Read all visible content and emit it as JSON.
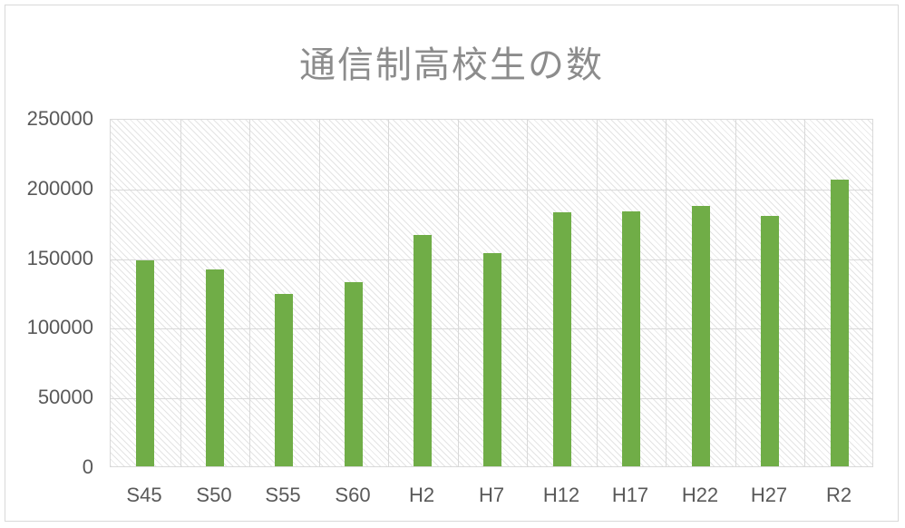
{
  "window": {
    "background": "#FFFFFF",
    "border_color": "#D9D9D9"
  },
  "chart_data": {
    "type": "bar",
    "title": "通信制高校生の数",
    "categories": [
      "S45",
      "S50",
      "S55",
      "S60",
      "H2",
      "H7",
      "H12",
      "H17",
      "H22",
      "H27",
      "R2"
    ],
    "values": [
      148000,
      141000,
      124000,
      132000,
      166000,
      153000,
      182000,
      183000,
      187000,
      180000,
      206000
    ],
    "xlabel": "",
    "ylabel": "",
    "ylim": [
      0,
      250000
    ],
    "ytick_step": 50000,
    "ytick_labels_top_to_bottom": [
      "250000",
      "200000",
      "150000",
      "100000",
      "50000",
      "0"
    ],
    "grid": true,
    "legend": "none",
    "plot_area_fill": "light-diagonal-hatch-pattern",
    "colors": {
      "bar": "#70AD47",
      "gridline": "#D9D9D9",
      "axis_label": "#595959",
      "title": "#8C8C8C",
      "hatch": "#E4E4E4"
    }
  }
}
